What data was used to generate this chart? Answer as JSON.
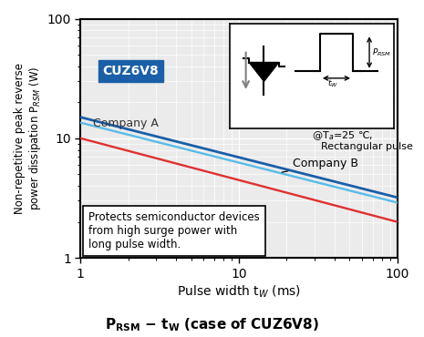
{
  "xlabel": "Pulse width t$_W$ (ms)",
  "ylabel": "Non-repetitive peak reverse\npower dissipation P$_{RSM}$ (W)",
  "xlim": [
    1,
    100
  ],
  "ylim": [
    1,
    100
  ],
  "cuz6v8_start": 15.0,
  "cuz6v8_end": 3.2,
  "company_a_start": 10.0,
  "company_a_end": 2.0,
  "company_b_start": 13.5,
  "company_b_end": 2.9,
  "cuz6v8_color": "#1a5fa8",
  "company_a_color": "#e03030",
  "company_b_color": "#5abbe8",
  "bg_color": "#ebebeb",
  "grid_color": "#ffffff",
  "annotation_text": "Protects semiconductor devices\nfrom high surge power with\nlong pulse width.",
  "temp_text1": "@T$_a$=25 ℃,",
  "temp_text2": "Rectangular pulse"
}
